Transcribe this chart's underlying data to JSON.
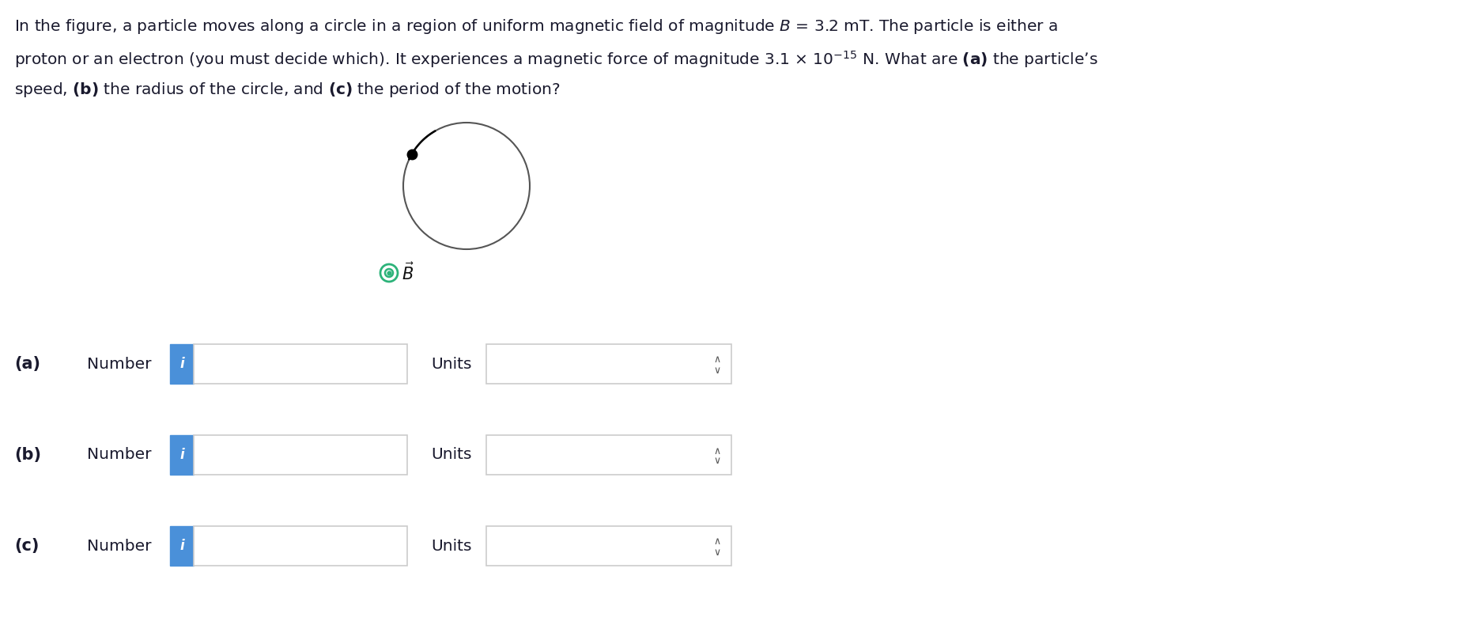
{
  "background_color": "#ffffff",
  "text_color": "#1a1a2e",
  "line1": "In the figure, a particle moves along a circle in a region of uniform magnetic field of magnitude $B$ = 3.2 mT. The particle is either a",
  "line2": "proton or an electron (you must decide which). It experiences a magnetic force of magnitude 3.1 × 10$^{-15}$ N. What are $\\mathbf{(a)}$ the particle’s",
  "line3": "speed, $\\mathbf{(b)}$ the radius of the circle, and $\\mathbf{(c)}$ the period of the motion?",
  "info_button_color": "#4a90d9",
  "box_edge_color": "#cccccc",
  "circle_edge_color": "#555555",
  "ob_circle_color": "#2db37a",
  "row_labels": [
    "(a)",
    "(b)",
    "(c)"
  ],
  "text_fontsize": 14.5,
  "label_fontsize": 15.0
}
